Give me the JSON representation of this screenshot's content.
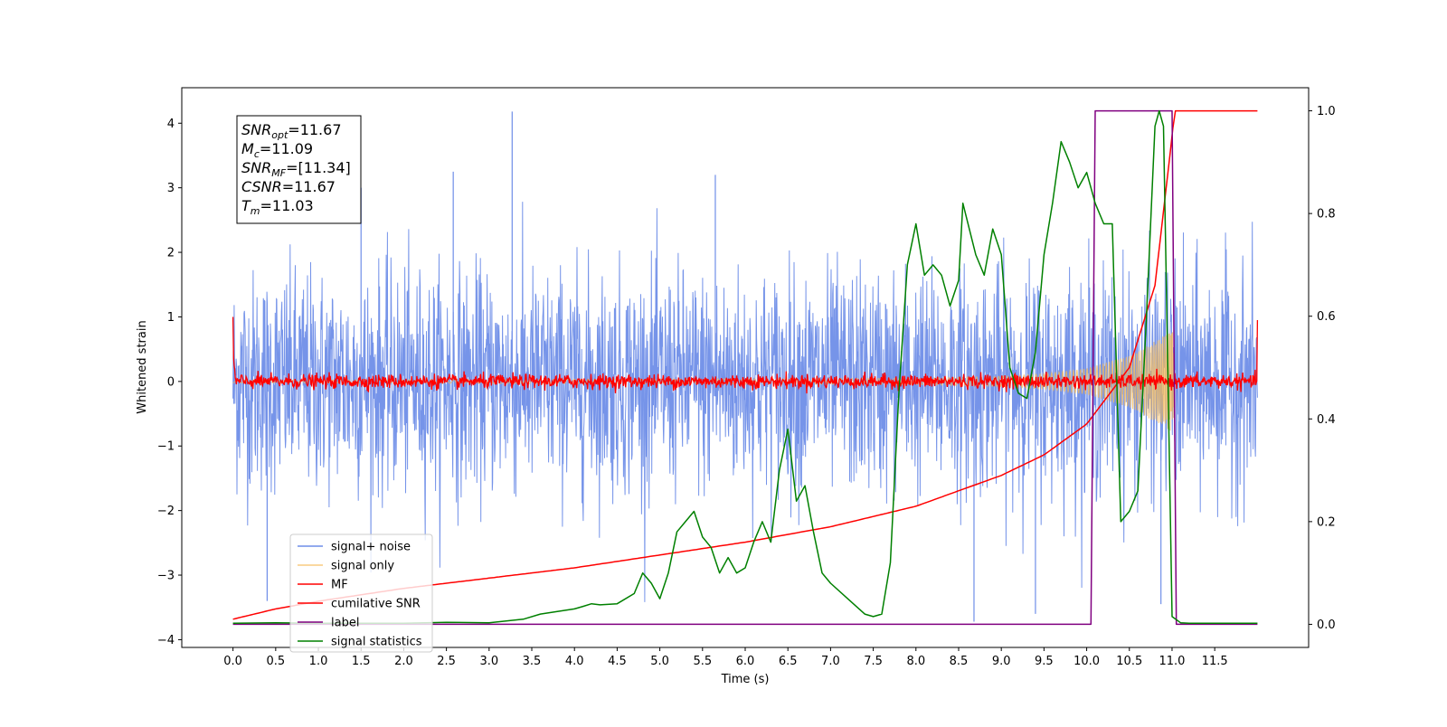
{
  "chart_data": {
    "type": "line",
    "xlabel": "Time (s)",
    "ylabel_left": "Whitened strain",
    "xlim": [
      -0.6,
      12.6
    ],
    "ylim_left": [
      -4.12,
      4.55
    ],
    "ylim_right": [
      -0.045,
      1.045
    ],
    "x_ticks": [
      0.0,
      0.5,
      1.0,
      1.5,
      2.0,
      2.5,
      3.0,
      3.5,
      4.0,
      4.5,
      5.0,
      5.5,
      6.0,
      6.5,
      7.0,
      7.5,
      8.0,
      8.5,
      9.0,
      9.5,
      10.0,
      10.5,
      11.0,
      11.5
    ],
    "x_tick_labels": [
      "0.0",
      "0.5",
      "1.0",
      "1.5",
      "2.0",
      "2.5",
      "3.0",
      "3.5",
      "4.0",
      "4.5",
      "5.0",
      "5.5",
      "6.0",
      "6.5",
      "7.0",
      "7.5",
      "8.0",
      "8.5",
      "9.0",
      "9.5",
      "10.0",
      "10.5",
      "11.0",
      "11.5"
    ],
    "y_ticks_left": [
      -4,
      -3,
      -2,
      -1,
      0,
      1,
      2,
      3,
      4
    ],
    "y_tick_labels_left": [
      "−4",
      "−3",
      "−2",
      "−1",
      "0",
      "1",
      "2",
      "3",
      "4"
    ],
    "y_ticks_right": [
      0.0,
      0.2,
      0.4,
      0.6,
      0.8,
      1.0
    ],
    "y_tick_labels_right": [
      "0.0",
      "0.2",
      "0.4",
      "0.6",
      "0.8",
      "1.0"
    ],
    "grid": false,
    "legend_position": "bottom-left",
    "series": [
      {
        "name": "signal+ noise",
        "color": "#6f8ee8",
        "axis": "left",
        "kind": "noise",
        "x_range": [
          0.0,
          12.0
        ],
        "typical_amplitude": 1.6,
        "min": -3.72,
        "max": 4.18
      },
      {
        "name": "signal only",
        "color": "#f5b955",
        "axis": "left",
        "kind": "chirp",
        "x_range": [
          0.0,
          11.03
        ],
        "amplitude_envelope": {
          "x": [
            0.0,
            8.0,
            9.0,
            9.5,
            10.0,
            10.5,
            10.9,
            11.03
          ],
          "y": [
            0.02,
            0.05,
            0.08,
            0.12,
            0.2,
            0.4,
            0.7,
            0.8
          ]
        }
      },
      {
        "name": "MF",
        "color": "#ff0000",
        "axis": "left",
        "kind": "noise",
        "x_range": [
          0.0,
          12.0
        ],
        "typical_amplitude": 0.1,
        "edge_values": [
          1.0,
          0.95
        ]
      },
      {
        "name": "cumilative SNR",
        "color": "#ff0000",
        "axis": "right",
        "x": [
          0.0,
          0.5,
          1.0,
          2.0,
          3.0,
          4.0,
          5.0,
          6.0,
          7.0,
          8.0,
          8.5,
          9.0,
          9.5,
          10.0,
          10.5,
          10.8,
          11.0,
          11.03,
          12.0
        ],
        "y": [
          0.01,
          0.03,
          0.045,
          0.07,
          0.09,
          0.11,
          0.135,
          0.16,
          0.19,
          0.23,
          0.26,
          0.29,
          0.33,
          0.39,
          0.5,
          0.66,
          0.95,
          1.0,
          1.0
        ]
      },
      {
        "name": "label",
        "color": "#800080",
        "axis": "right",
        "x": [
          0.0,
          10.05,
          10.1,
          11.0,
          11.05,
          12.0
        ],
        "y": [
          0.0,
          0.0,
          1.0,
          1.0,
          0.0,
          0.0
        ]
      },
      {
        "name": "signal statistics",
        "color": "#008000",
        "axis": "right",
        "x": [
          0.0,
          0.5,
          1.0,
          2.0,
          2.5,
          3.0,
          3.4,
          3.6,
          3.8,
          4.0,
          4.1,
          4.2,
          4.3,
          4.5,
          4.7,
          4.8,
          4.9,
          5.0,
          5.1,
          5.2,
          5.3,
          5.4,
          5.5,
          5.6,
          5.7,
          5.8,
          5.9,
          6.0,
          6.1,
          6.2,
          6.3,
          6.4,
          6.5,
          6.6,
          6.7,
          6.8,
          6.9,
          7.0,
          7.2,
          7.4,
          7.5,
          7.6,
          7.7,
          7.8,
          7.9,
          8.0,
          8.1,
          8.2,
          8.3,
          8.4,
          8.5,
          8.55,
          8.7,
          8.8,
          8.9,
          9.0,
          9.1,
          9.2,
          9.3,
          9.4,
          9.5,
          9.6,
          9.7,
          9.8,
          9.9,
          10.0,
          10.1,
          10.2,
          10.3,
          10.4,
          10.5,
          10.6,
          10.7,
          10.8,
          10.85,
          10.9,
          10.95,
          11.0,
          11.1,
          11.2,
          11.5,
          12.0
        ],
        "y": [
          0.002,
          0.003,
          0.002,
          0.002,
          0.004,
          0.003,
          0.01,
          0.02,
          0.025,
          0.03,
          0.035,
          0.04,
          0.038,
          0.04,
          0.06,
          0.1,
          0.08,
          0.05,
          0.1,
          0.18,
          0.2,
          0.22,
          0.17,
          0.15,
          0.1,
          0.13,
          0.1,
          0.11,
          0.16,
          0.2,
          0.16,
          0.3,
          0.38,
          0.24,
          0.27,
          0.18,
          0.1,
          0.08,
          0.05,
          0.02,
          0.015,
          0.02,
          0.12,
          0.45,
          0.7,
          0.78,
          0.68,
          0.7,
          0.68,
          0.62,
          0.67,
          0.82,
          0.72,
          0.68,
          0.77,
          0.72,
          0.5,
          0.45,
          0.44,
          0.53,
          0.72,
          0.82,
          0.94,
          0.9,
          0.85,
          0.88,
          0.82,
          0.78,
          0.78,
          0.2,
          0.22,
          0.26,
          0.6,
          0.97,
          1.0,
          0.97,
          0.5,
          0.015,
          0.003,
          0.002,
          0.002,
          0.002
        ]
      }
    ],
    "annotation": {
      "lines": [
        {
          "base": "SNR",
          "sub": "opt",
          "value": "=11.67"
        },
        {
          "base": "M",
          "sub": "c",
          "value": "=11.09"
        },
        {
          "base": "SNR",
          "sub": "MF",
          "value": "=[11.34]"
        },
        {
          "base": "CSNR",
          "sub": "",
          "value": "=11.67"
        },
        {
          "base": "T",
          "sub": "m",
          "value": "=11.03"
        }
      ]
    }
  }
}
